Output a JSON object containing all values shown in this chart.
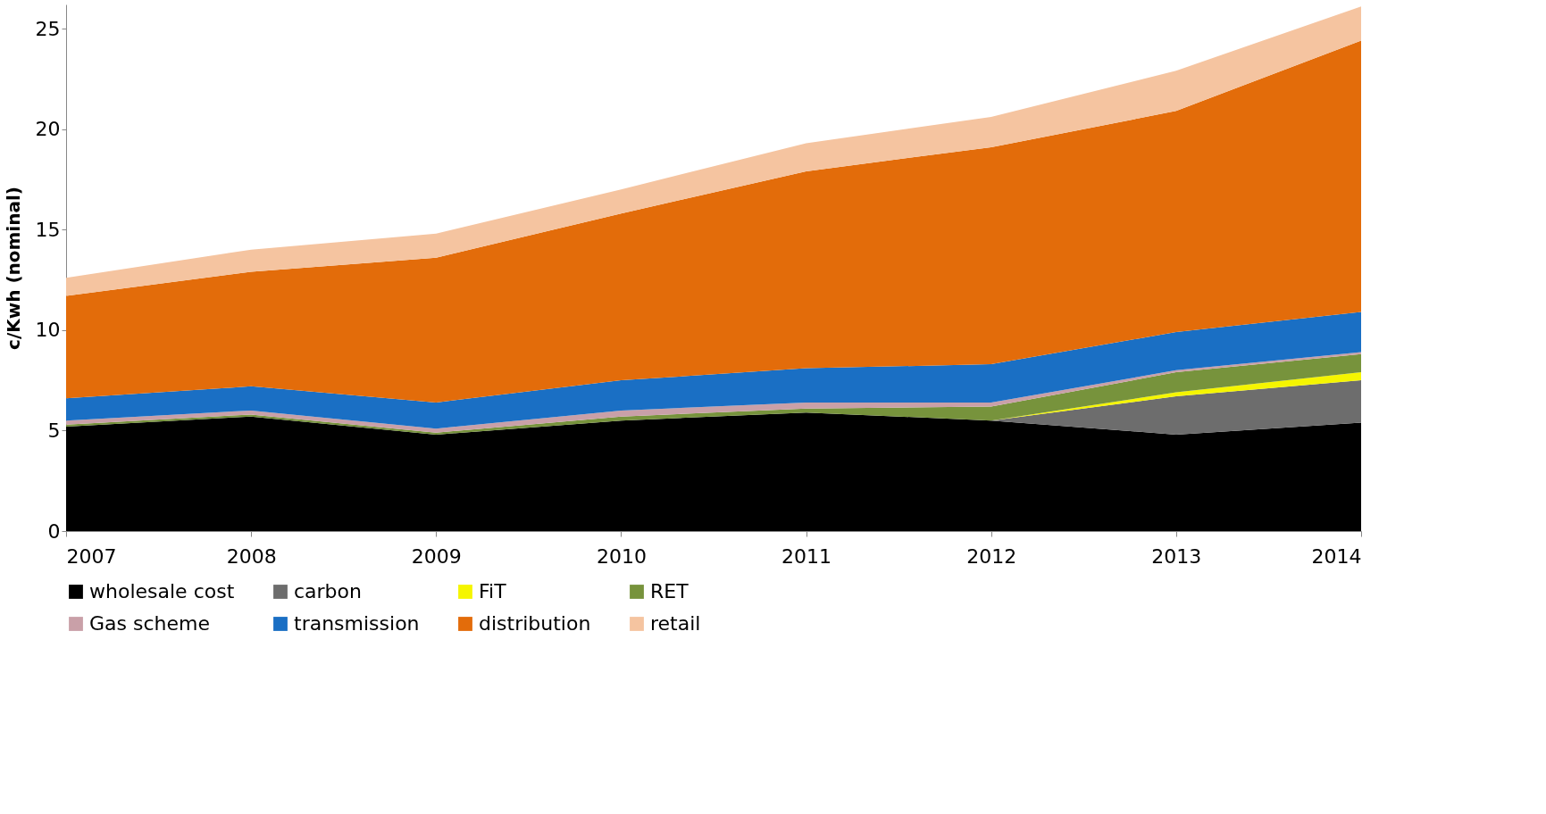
{
  "chart_data": {
    "type": "area",
    "stacked": true,
    "ylabel": "c/Kwh (nominal)",
    "x": [
      2007,
      2008,
      2009,
      2010,
      2011,
      2012,
      2013,
      2014
    ],
    "xlim": [
      2007,
      2014
    ],
    "xticks": [
      2007,
      2008,
      2009,
      2010,
      2011,
      2012,
      2013,
      2014
    ],
    "ylim": [
      0,
      26.2
    ],
    "yticks": [
      0,
      5,
      10,
      15,
      20,
      25
    ],
    "grid": false,
    "legend": "bottom",
    "series": [
      {
        "name": "wholesale cost",
        "color": "#000000",
        "values": [
          5.2,
          5.7,
          4.8,
          5.5,
          5.9,
          5.5,
          4.8,
          5.4
        ]
      },
      {
        "name": "carbon",
        "color": "#6d6d6d",
        "values": [
          0,
          0,
          0,
          0,
          0,
          0,
          1.9,
          2.1
        ]
      },
      {
        "name": "FiT",
        "color": "#f5f500",
        "values": [
          0,
          0,
          0,
          0,
          0,
          0,
          0.2,
          0.4
        ]
      },
      {
        "name": "RET",
        "color": "#77933c",
        "values": [
          0.1,
          0.1,
          0.1,
          0.2,
          0.2,
          0.7,
          1.0,
          0.9
        ]
      },
      {
        "name": "Gas scheme",
        "color": "#c9a0a8",
        "values": [
          0.2,
          0.2,
          0.2,
          0.3,
          0.3,
          0.2,
          0.1,
          0.1
        ]
      },
      {
        "name": "transmission",
        "color": "#1a6fc4",
        "values": [
          1.1,
          1.2,
          1.3,
          1.5,
          1.7,
          1.9,
          1.9,
          2.0
        ]
      },
      {
        "name": "distribution",
        "color": "#e36c0a",
        "values": [
          5.1,
          5.7,
          7.2,
          8.3,
          9.8,
          10.8,
          11.0,
          13.5
        ]
      },
      {
        "name": "retail",
        "color": "#f5c4a0",
        "values": [
          0.9,
          1.1,
          1.2,
          1.2,
          1.4,
          1.5,
          2.0,
          1.7
        ]
      }
    ]
  }
}
